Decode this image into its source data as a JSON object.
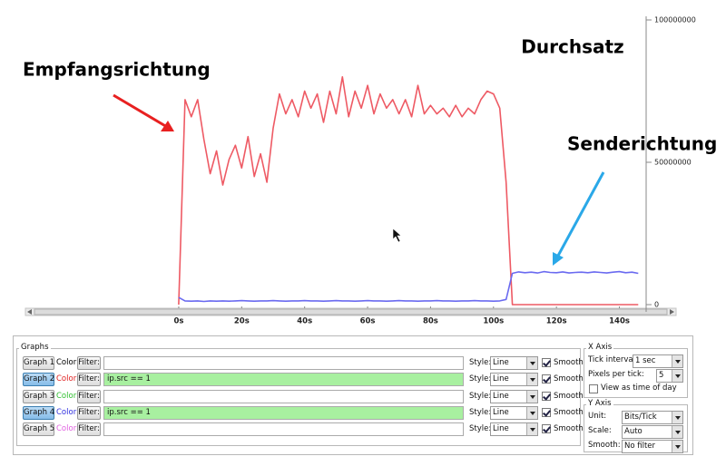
{
  "chart_data": {
    "type": "line",
    "title": "Durchsatz",
    "annotations": [
      "Empfangsrichtung",
      "Senderichtung"
    ],
    "x": [
      0,
      2,
      4,
      6,
      8,
      10,
      12,
      14,
      16,
      18,
      20,
      22,
      24,
      26,
      28,
      30,
      32,
      34,
      36,
      38,
      40,
      42,
      44,
      46,
      48,
      50,
      52,
      54,
      56,
      58,
      60,
      62,
      64,
      66,
      68,
      70,
      72,
      74,
      76,
      78,
      80,
      82,
      84,
      86,
      88,
      90,
      92,
      94,
      96,
      98,
      100,
      102,
      104,
      106,
      108,
      110,
      112,
      114,
      116,
      118,
      120,
      122,
      124,
      126,
      128,
      130,
      132,
      134,
      136,
      138,
      140,
      142,
      144,
      146
    ],
    "series": [
      {
        "color": "#ee5a64",
        "values": [
          0,
          72000000,
          66000000,
          72000000,
          58000000,
          46000000,
          54000000,
          42000000,
          51000000,
          56000000,
          48000000,
          59000000,
          45000000,
          53000000,
          43000000,
          62000000,
          74000000,
          67000000,
          72000000,
          66000000,
          75000000,
          69000000,
          74000000,
          64000000,
          75000000,
          67000000,
          80000000,
          66000000,
          75000000,
          69000000,
          77000000,
          67000000,
          74000000,
          69000000,
          72000000,
          67000000,
          72000000,
          66000000,
          77000000,
          67000000,
          70000000,
          67000000,
          69000000,
          66000000,
          70000000,
          66000000,
          69000000,
          67000000,
          72000000,
          75000000,
          74000000,
          69000000,
          43000000,
          0,
          0,
          0,
          0,
          0,
          0,
          0,
          0,
          0,
          0,
          0,
          0,
          0,
          0,
          0,
          0,
          0,
          0,
          0,
          0,
          0
        ]
      },
      {
        "color": "#6a6af0",
        "values": [
          2500000,
          1300000,
          1200000,
          1300000,
          1100000,
          1300000,
          1200000,
          1300000,
          1200000,
          1300000,
          1400000,
          1300000,
          1200000,
          1300000,
          1300000,
          1400000,
          1300000,
          1200000,
          1300000,
          1300000,
          1400000,
          1300000,
          1300000,
          1200000,
          1300000,
          1400000,
          1300000,
          1300000,
          1200000,
          1300000,
          1400000,
          1300000,
          1300000,
          1200000,
          1300000,
          1400000,
          1300000,
          1300000,
          1200000,
          1300000,
          1300000,
          1400000,
          1300000,
          1300000,
          1200000,
          1300000,
          1300000,
          1400000,
          1300000,
          1300000,
          1200000,
          1300000,
          1800000,
          11000000,
          11500000,
          11200000,
          11400000,
          11100000,
          11600000,
          11300000,
          11200000,
          11500000,
          11100000,
          11300000,
          11400000,
          11200000,
          11500000,
          11300000,
          11100000,
          11400000,
          11600000,
          11200000,
          11400000,
          11000000
        ]
      }
    ],
    "xlim": [
      -49,
      148.5
    ],
    "xticks": [
      {
        "value": 0,
        "label": "0s"
      },
      {
        "value": 20,
        "label": "20s"
      },
      {
        "value": 40,
        "label": "40s"
      },
      {
        "value": 60,
        "label": "60s"
      },
      {
        "value": 80,
        "label": "80s"
      },
      {
        "value": 100,
        "label": "100s"
      },
      {
        "value": 120,
        "label": "120s"
      },
      {
        "value": 140,
        "label": "140s"
      }
    ],
    "ylim": [
      0,
      100000000
    ],
    "yticks": [
      0,
      50000000,
      100000000
    ],
    "y_axis_side": "right"
  },
  "controls": {
    "graphs_group": "Graphs",
    "graphs": [
      {
        "button": "Graph 1",
        "active": false,
        "color_label": "Color",
        "color": "#000000",
        "filter_button": "Filter:",
        "style_label": "Style:",
        "style": "Line",
        "smooth": true,
        "smooth_label": "Smooth"
      },
      {
        "button": "Graph 2",
        "active": true,
        "color_label": "Color",
        "color": "#e02020",
        "filter_button": "Filter:",
        "filter": "ip.src == 1",
        "style_label": "Style:",
        "style": "Line",
        "smooth": true,
        "smooth_label": "Smooth"
      },
      {
        "button": "Graph 3",
        "active": false,
        "color_label": "Color",
        "color": "#30c030",
        "filter_button": "Filter:",
        "style_label": "Style:",
        "style": "Line",
        "smooth": true,
        "smooth_label": "Smooth"
      },
      {
        "button": "Graph 4",
        "active": true,
        "color_label": "Color",
        "color": "#3030e0",
        "filter_button": "Filter:",
        "filter": "ip.src == 1",
        "style_label": "Style:",
        "style": "Line",
        "smooth": true,
        "smooth_label": "Smooth"
      },
      {
        "button": "Graph 5",
        "active": false,
        "color_label": "Color",
        "color": "#e060e0",
        "filter_button": "Filter:",
        "style_label": "Style:",
        "style": "Line",
        "smooth": true,
        "smooth_label": "Smooth"
      }
    ],
    "x_axis": {
      "title": "X Axis",
      "tick_interval_label": "Tick interval:",
      "tick_interval": "1 sec",
      "pixels_per_tick_label": "Pixels per tick:",
      "pixels_per_tick": 5,
      "view_time_of_day_label": "View as time of day",
      "view_time_of_day": false
    },
    "y_axis": {
      "title": "Y Axis",
      "unit_label": "Unit:",
      "unit": "Bits/Tick",
      "scale_label": "Scale:",
      "scale": "Auto",
      "smooth_label": "Smooth:",
      "smooth": "No filter"
    }
  }
}
